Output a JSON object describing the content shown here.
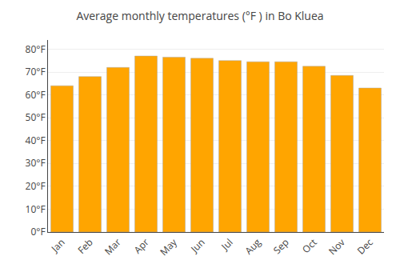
{
  "chart_data": {
    "type": "bar",
    "title": "Average monthly temperatures (°F ) in Bo Kluea",
    "categories": [
      "Jan",
      "Feb",
      "Mar",
      "Apr",
      "May",
      "Jun",
      "Jul",
      "Aug",
      "Sep",
      "Oct",
      "Nov",
      "Dec"
    ],
    "values": [
      64,
      68,
      72,
      77,
      76.5,
      76,
      75,
      74.5,
      74.5,
      72.5,
      68.5,
      63
    ],
    "color": "#FFA500",
    "ylim": [
      0,
      84
    ],
    "yticks": [
      {
        "value": 0,
        "label": "0°F"
      },
      {
        "value": 10,
        "label": "10°F"
      },
      {
        "value": 20,
        "label": "20°F"
      },
      {
        "value": 30,
        "label": "30°F"
      },
      {
        "value": 40,
        "label": "40°F"
      },
      {
        "value": 50,
        "label": "50°F"
      },
      {
        "value": 60,
        "label": "60°F"
      },
      {
        "value": 70,
        "label": "70°F"
      },
      {
        "value": 80,
        "label": "80°F"
      }
    ],
    "grid": true
  }
}
